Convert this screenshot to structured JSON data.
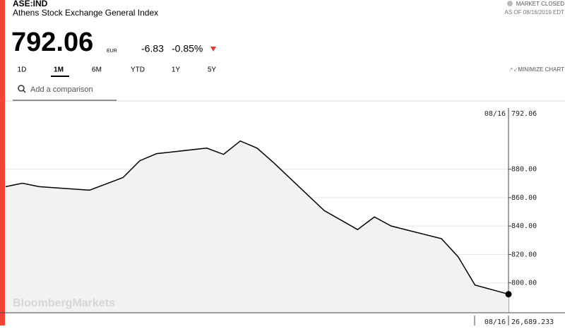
{
  "header": {
    "ticker": "ASE:IND",
    "name": "Athens Stock Exchange General Index",
    "status": "MARKET CLOSED",
    "as_of": "AS OF 08/16/2019 EDT",
    "price": "792.06",
    "currency": "EUR",
    "change": "-6.83",
    "change_pct": "-0.85%"
  },
  "tabs": [
    "1D",
    "1M",
    "6M",
    "YTD",
    "1Y",
    "5Y"
  ],
  "minimize": "MINIMIZE CHART",
  "search_placeholder": "Add a comparison",
  "watermark": "BloombergMarkets",
  "chart_data": {
    "type": "line",
    "x": [
      0,
      1,
      2,
      5,
      7,
      8,
      9,
      12,
      13,
      14,
      15,
      16,
      19,
      21,
      22,
      23,
      26,
      27,
      28,
      30
    ],
    "values": [
      867.7,
      870.1,
      867.7,
      865.2,
      874.1,
      885.9,
      890.9,
      894.8,
      890.4,
      899.8,
      894.8,
      884.4,
      850.9,
      837.5,
      846.4,
      840.0,
      831.1,
      818.3,
      798.5,
      792.06
    ],
    "xlim": [
      0,
      30
    ],
    "ylim": [
      779,
      922
    ],
    "yticks": [
      {
        "value": 800,
        "label": "800.00"
      },
      {
        "value": 820,
        "label": "820.00"
      },
      {
        "value": 840,
        "label": "840.00"
      },
      {
        "value": 860,
        "label": "860.00"
      },
      {
        "value": 880,
        "label": "880.00"
      }
    ],
    "grid": true,
    "color": "#000000",
    "area_color": "#f2f2f2",
    "last_date": "08/16"
  },
  "footer": {
    "date": "08/16",
    "value": "26,689.233"
  }
}
